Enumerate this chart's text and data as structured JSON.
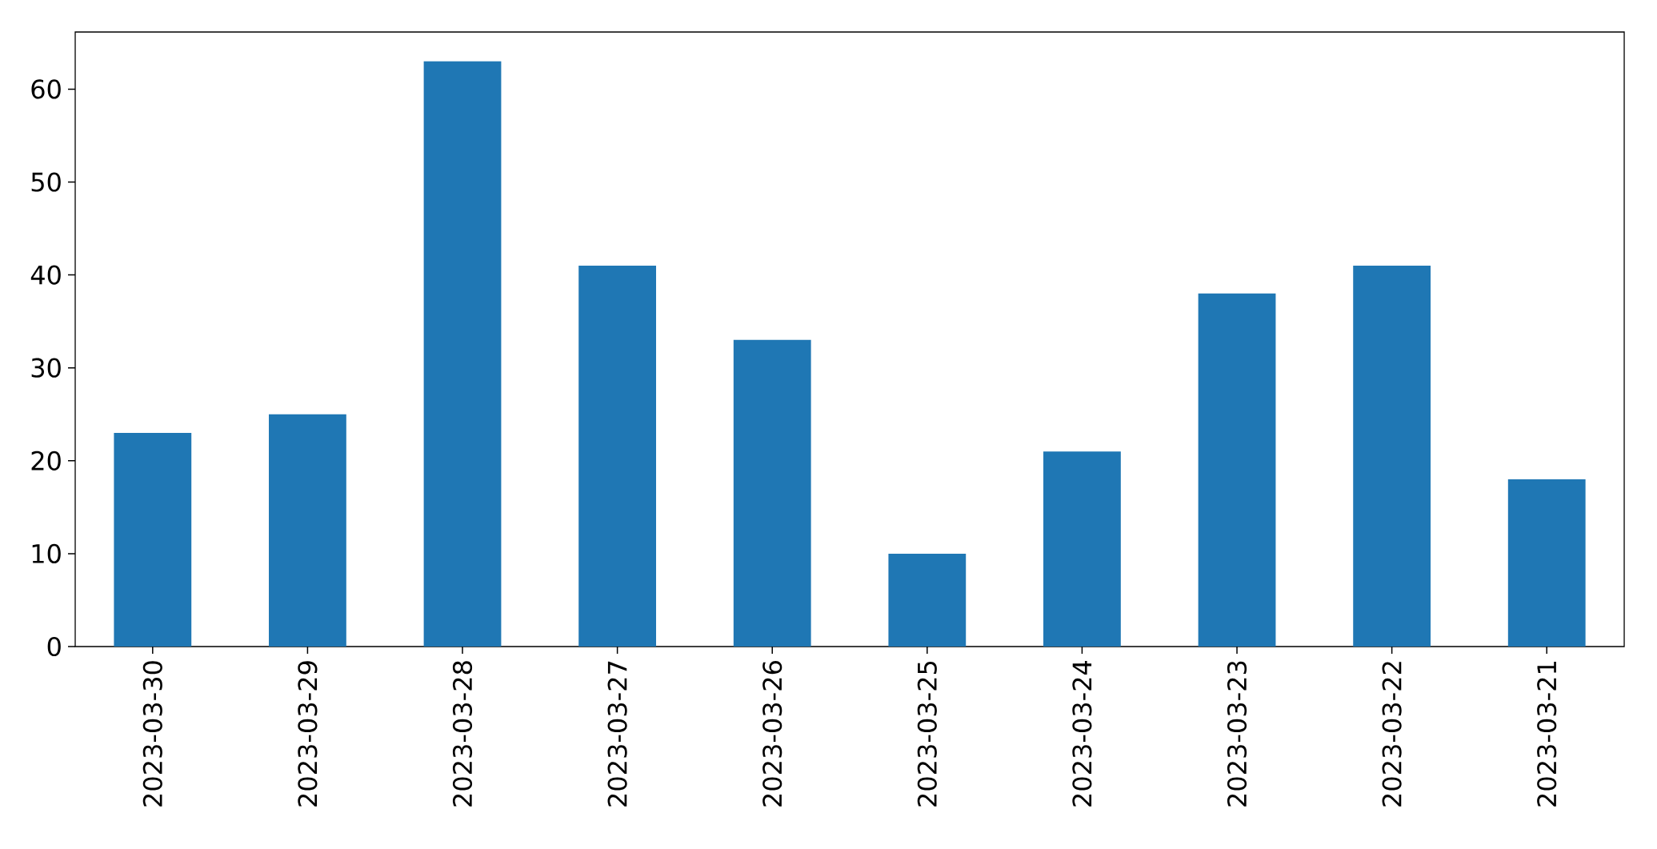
{
  "chart_data": {
    "type": "bar",
    "categories": [
      "2023-03-30",
      "2023-03-29",
      "2023-03-28",
      "2023-03-27",
      "2023-03-26",
      "2023-03-25",
      "2023-03-24",
      "2023-03-23",
      "2023-03-22",
      "2023-03-21"
    ],
    "values": [
      23,
      25,
      63,
      41,
      33,
      10,
      21,
      38,
      41,
      18
    ],
    "color": "#1f77b4",
    "ylim": [
      0,
      66.15
    ],
    "yticks": [
      0,
      10,
      20,
      30,
      40,
      50,
      60
    ]
  }
}
